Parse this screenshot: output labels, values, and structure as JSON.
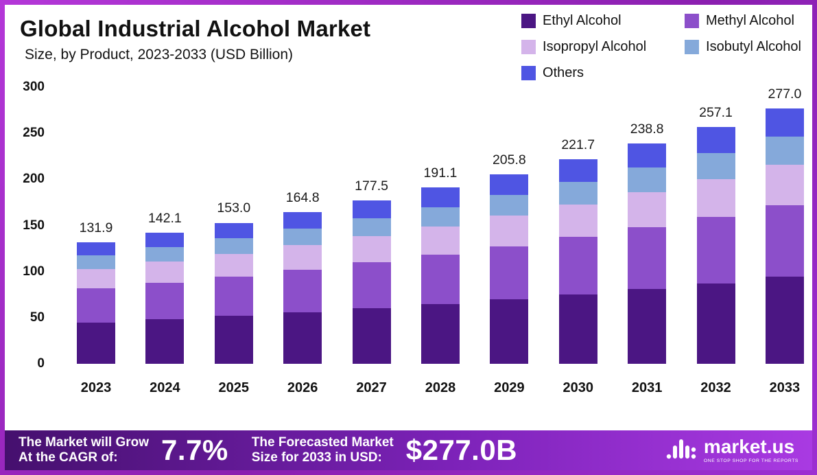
{
  "header": {
    "title": "Global Industrial Alcohol Market",
    "subtitle": "Size, by Product, 2023-2033 (USD Billion)"
  },
  "chart_data": {
    "type": "bar",
    "stacked": true,
    "title": "Global Industrial Alcohol Market Size, by Product, 2023-2033 (USD Billion)",
    "xlabel": "",
    "ylabel": "",
    "ylim": [
      0,
      300
    ],
    "yticks": [
      300,
      250,
      200,
      150,
      100,
      50,
      0
    ],
    "grid": false,
    "legend_position": "top-right",
    "categories": [
      "2023",
      "2024",
      "2025",
      "2026",
      "2027",
      "2028",
      "2029",
      "2030",
      "2031",
      "2032",
      "2033"
    ],
    "series": [
      {
        "name": "Ethyl Alcohol",
        "color": "#4b1683",
        "values": [
          44.8,
          48.3,
          52.0,
          56.0,
          60.4,
          65.0,
          70.0,
          75.4,
          81.2,
          87.4,
          94.2
        ]
      },
      {
        "name": "Methyl Alcohol",
        "color": "#8c4fca",
        "values": [
          37.0,
          39.8,
          42.8,
          46.1,
          49.7,
          53.5,
          57.6,
          62.1,
          66.9,
          72.0,
          77.6
        ]
      },
      {
        "name": "Isopropyl Alcohol",
        "color": "#d4b4ea",
        "values": [
          21.1,
          22.7,
          24.5,
          26.4,
          28.4,
          30.6,
          32.9,
          35.5,
          38.2,
          41.1,
          44.3
        ]
      },
      {
        "name": "Isobutyl Alcohol",
        "color": "#85a9da",
        "values": [
          14.5,
          15.6,
          16.8,
          18.1,
          19.5,
          21.0,
          22.6,
          24.4,
          26.3,
          28.3,
          30.5
        ]
      },
      {
        "name": "Others",
        "color": "#4f55e3",
        "values": [
          14.5,
          15.7,
          16.9,
          18.2,
          19.5,
          21.0,
          22.7,
          24.3,
          26.2,
          28.3,
          30.4
        ]
      }
    ],
    "totals": [
      "131.9",
      "142.1",
      "153.0",
      "164.8",
      "177.5",
      "191.1",
      "205.8",
      "221.7",
      "238.8",
      "257.1",
      "277.0"
    ]
  },
  "footer": {
    "cagr_label": "The Market will Grow\nAt the CAGR of:",
    "cagr_value": "7.7%",
    "forecast_label": "The Forecasted Market\nSize for 2033 in USD:",
    "forecast_value": "$277.0B",
    "brand": "market.us",
    "brand_tagline": "ONE STOP SHOP FOR THE REPORTS"
  }
}
